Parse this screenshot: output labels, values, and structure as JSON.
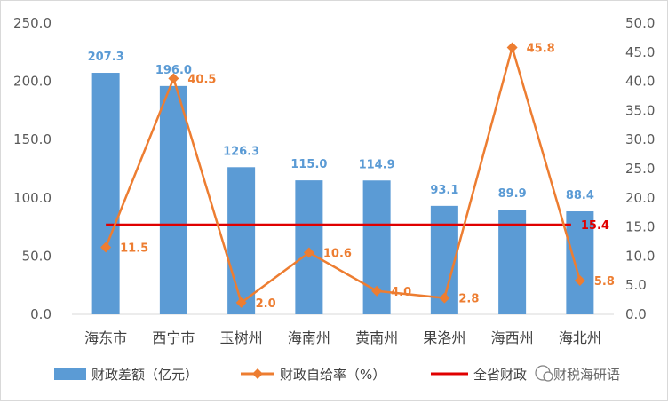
{
  "chart_data": {
    "type": "bar",
    "categories": [
      "海东市",
      "西宁市",
      "玉树州",
      "海南州",
      "黄南州",
      "果洛州",
      "海西州",
      "海北州"
    ],
    "series": [
      {
        "name": "财政差额（亿元）",
        "type": "bar",
        "axis": "left",
        "values": [
          207.3,
          196.0,
          126.3,
          115.0,
          114.9,
          93.1,
          89.9,
          88.4
        ],
        "labels": [
          "207.3",
          "196.0",
          "126.3",
          "115.0",
          "114.9",
          "93.1",
          "89.9",
          "88.4"
        ],
        "color": "#5b9bd5"
      },
      {
        "name": "财政自给率（%）",
        "type": "line",
        "axis": "right",
        "values": [
          11.5,
          40.5,
          2.0,
          10.6,
          4.0,
          2.8,
          45.8,
          5.8
        ],
        "labels": [
          "11.5",
          "40.5",
          "2.0",
          "10.6",
          "4.0",
          "2.8",
          "45.8",
          "5.8"
        ],
        "color": "#ed7d31"
      },
      {
        "name": "全省财政",
        "type": "line",
        "axis": "right",
        "value": 15.4,
        "label": "15.4",
        "color": "#e00000"
      }
    ],
    "y_left": {
      "min": 0,
      "max": 250,
      "step": 50,
      "tick_labels": [
        "0.0",
        "50.0",
        "100.0",
        "150.0",
        "200.0",
        "250.0"
      ]
    },
    "y_right": {
      "min": 0,
      "max": 50,
      "step": 5,
      "tick_labels": [
        "0.0",
        "5.0",
        "10.0",
        "15.0",
        "20.0",
        "25.0",
        "30.0",
        "35.0",
        "40.0",
        "45.0",
        "50.0"
      ]
    },
    "grid": false,
    "legend_position": "bottom",
    "title": "",
    "xlabel": "",
    "ylabel": ""
  },
  "watermark": "财税海研语"
}
